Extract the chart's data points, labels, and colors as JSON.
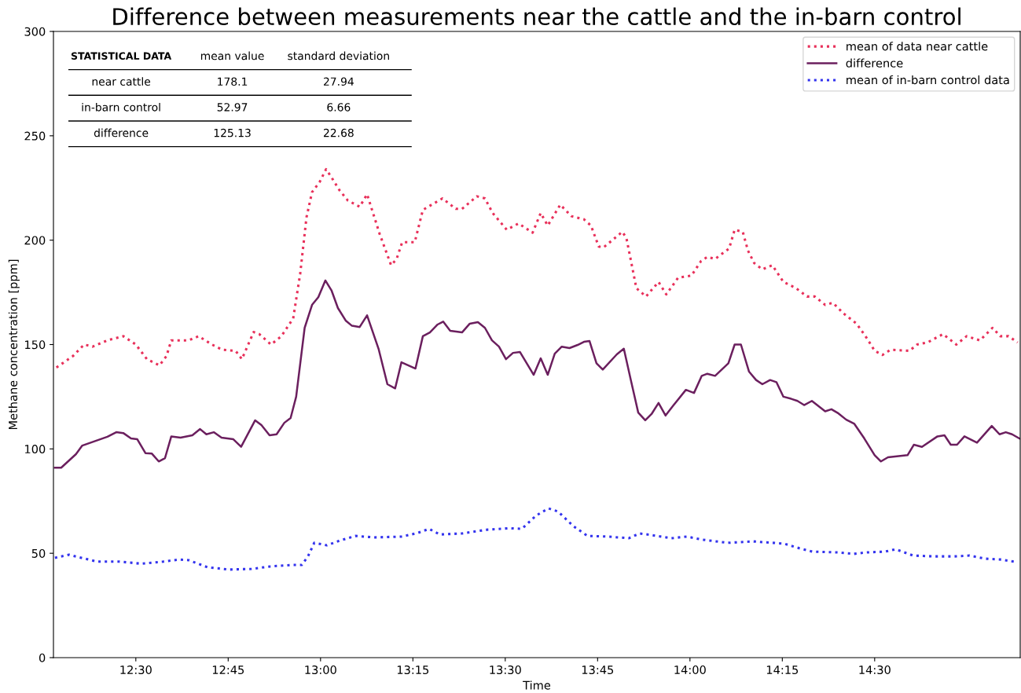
{
  "chart_data": {
    "type": "line",
    "title": "Difference between measurements near the cattle and the in-barn control",
    "xlabel": "Time",
    "ylabel": "Methane concentration [ppm]",
    "xlim": [
      12.277,
      14.894
    ],
    "ylim": [
      0,
      300
    ],
    "xticks": [
      {
        "value": 12.5,
        "label": "12:30"
      },
      {
        "value": 12.75,
        "label": "12:45"
      },
      {
        "value": 13.0,
        "label": "13:00"
      },
      {
        "value": 13.25,
        "label": "13:15"
      },
      {
        "value": 13.5,
        "label": "13:30"
      },
      {
        "value": 13.75,
        "label": "13:45"
      },
      {
        "value": 14.0,
        "label": "14:00"
      },
      {
        "value": 14.25,
        "label": "14:15"
      },
      {
        "value": 14.5,
        "label": "14:30"
      }
    ],
    "yticks": [
      0,
      50,
      100,
      150,
      200,
      250,
      300
    ],
    "grid": false,
    "legend": "top right",
    "marker": "none",
    "series": [
      {
        "name": "mean of data near cattle",
        "color": "#e8305a",
        "line_style": "dotted",
        "x": [
          12.285,
          12.33,
          12.36,
          12.383,
          12.423,
          12.466,
          12.5,
          12.53,
          12.564,
          12.583,
          12.596,
          12.643,
          12.67,
          12.706,
          12.734,
          12.77,
          12.787,
          12.819,
          12.834,
          12.866,
          12.894,
          12.926,
          12.945,
          12.962,
          12.977,
          12.998,
          13.015,
          13.03,
          13.051,
          13.074,
          13.106,
          13.126,
          13.16,
          13.191,
          13.206,
          13.221,
          13.255,
          13.277,
          13.33,
          13.366,
          13.383,
          13.423,
          13.445,
          13.466,
          13.504,
          13.536,
          13.574,
          13.596,
          13.615,
          13.649,
          13.679,
          13.713,
          13.732,
          13.753,
          13.766,
          13.817,
          13.828,
          13.855,
          13.881,
          13.915,
          13.936,
          13.968,
          14.004,
          14.03,
          14.047,
          14.068,
          14.106,
          14.121,
          14.143,
          14.157,
          14.174,
          14.196,
          14.223,
          14.253,
          14.287,
          14.317,
          14.338,
          14.366,
          14.387,
          14.415,
          14.451,
          14.479,
          14.5,
          14.521,
          14.543,
          14.594,
          14.615,
          14.643,
          14.685,
          14.721,
          14.749,
          14.785,
          14.819,
          14.84,
          14.862,
          14.887
        ],
        "values": [
          139,
          144.5,
          150,
          149,
          152,
          154,
          150,
          143,
          140,
          144.5,
          152,
          152,
          154,
          150,
          147.5,
          147,
          143,
          156,
          155,
          150,
          154,
          162.5,
          184,
          211,
          223,
          228,
          234,
          230,
          224,
          219,
          216,
          222,
          203,
          188,
          191,
          199,
          199,
          214.5,
          220,
          215,
          215,
          221,
          220,
          213,
          205,
          208,
          203.6,
          213,
          207,
          217,
          211.5,
          210,
          207,
          197,
          196.5,
          204,
          201,
          177,
          173,
          180,
          174,
          182,
          183,
          190,
          192,
          191,
          196,
          205,
          204,
          195,
          189,
          186,
          188,
          180,
          177,
          173,
          173,
          169,
          170,
          165,
          160,
          153,
          147,
          145,
          147.5,
          147,
          150,
          151,
          155,
          150,
          154,
          152,
          158,
          154,
          154,
          151
        ]
      },
      {
        "name": "difference",
        "color": "#6b1f5e",
        "line_style": "solid",
        "x": [
          12.281,
          12.298,
          12.338,
          12.355,
          12.423,
          12.447,
          12.466,
          12.487,
          12.504,
          12.526,
          12.543,
          12.562,
          12.579,
          12.596,
          12.621,
          12.653,
          12.674,
          12.691,
          12.711,
          12.732,
          12.764,
          12.785,
          12.823,
          12.84,
          12.862,
          12.881,
          12.902,
          12.919,
          12.934,
          12.945,
          12.957,
          12.977,
          12.994,
          13.013,
          13.03,
          13.047,
          13.068,
          13.085,
          13.106,
          13.126,
          13.157,
          13.181,
          13.202,
          13.219,
          13.238,
          13.257,
          13.277,
          13.296,
          13.317,
          13.332,
          13.351,
          13.383,
          13.404,
          13.426,
          13.445,
          13.464,
          13.483,
          13.502,
          13.521,
          13.54,
          13.577,
          13.596,
          13.615,
          13.634,
          13.653,
          13.674,
          13.696,
          13.713,
          13.728,
          13.747,
          13.764,
          13.802,
          13.821,
          13.84,
          13.86,
          13.879,
          13.896,
          13.915,
          13.934,
          13.955,
          13.989,
          14.011,
          14.032,
          14.047,
          14.068,
          14.104,
          14.121,
          14.138,
          14.16,
          14.179,
          14.196,
          14.217,
          14.234,
          14.253,
          14.274,
          14.291,
          14.309,
          14.33,
          14.366,
          14.383,
          14.402,
          14.423,
          14.445,
          14.472,
          14.5,
          14.517,
          14.536,
          14.589,
          14.606,
          14.628,
          14.67,
          14.689,
          14.706,
          14.723,
          14.743,
          14.777,
          14.817,
          14.838,
          14.855,
          14.872,
          14.892
        ],
        "values": [
          91,
          91,
          97.5,
          101.6,
          105.8,
          108,
          107.6,
          105,
          104.6,
          98,
          97.8,
          94,
          95.6,
          106,
          105.4,
          106.5,
          109.5,
          107,
          108,
          105.4,
          104.6,
          101,
          113.7,
          111.4,
          106.5,
          107,
          112.5,
          114.8,
          125,
          140.8,
          158,
          169,
          172.7,
          180.7,
          175.8,
          167.5,
          161.5,
          159,
          158.4,
          164,
          148,
          131,
          129,
          141.5,
          140,
          138.5,
          154,
          155.8,
          159.6,
          161,
          156.6,
          155.8,
          160,
          160.7,
          158,
          152,
          149,
          143,
          146,
          146.4,
          135.5,
          143.4,
          135.5,
          145.6,
          149,
          148.3,
          149.8,
          151.3,
          151.7,
          141,
          138,
          145.3,
          148,
          133,
          117.4,
          113.7,
          116.7,
          122,
          116,
          120.8,
          128.3,
          126.8,
          135,
          136,
          135,
          141,
          150,
          150,
          137,
          133,
          131,
          133,
          132,
          125,
          124,
          123,
          121,
          123,
          118,
          119,
          117,
          114,
          112,
          105,
          97,
          94,
          96,
          97,
          102,
          101,
          106,
          106.5,
          102,
          102,
          106,
          103,
          111,
          107,
          108,
          107,
          105
        ]
      },
      {
        "name": "mean of in-barn control data",
        "color": "#3333ee",
        "line_style": "dotted",
        "x": [
          12.281,
          12.319,
          12.353,
          12.396,
          12.455,
          12.515,
          12.574,
          12.617,
          12.643,
          12.694,
          12.753,
          12.813,
          12.864,
          12.923,
          12.949,
          12.966,
          12.983,
          13.017,
          13.051,
          13.094,
          13.145,
          13.221,
          13.264,
          13.294,
          13.323,
          13.383,
          13.451,
          13.511,
          13.545,
          13.583,
          13.617,
          13.643,
          13.685,
          13.723,
          13.779,
          13.834,
          13.864,
          13.898,
          13.949,
          13.991,
          14.034,
          14.102,
          14.17,
          14.255,
          14.298,
          14.332,
          14.4,
          14.443,
          14.477,
          14.528,
          14.557,
          14.604,
          14.664,
          14.715,
          14.757,
          14.8,
          14.843,
          14.877
        ],
        "values": [
          47.8,
          49.3,
          47.8,
          46,
          46,
          45,
          46,
          47,
          46.7,
          43.3,
          42.2,
          42.5,
          43.7,
          44.4,
          44.4,
          48.5,
          55,
          53.8,
          56,
          58.3,
          57.6,
          58,
          59.8,
          61.7,
          59,
          59.5,
          61.3,
          62,
          61.7,
          68,
          71.5,
          70,
          62.9,
          58.3,
          58,
          57.2,
          59.5,
          58.7,
          57.2,
          58,
          56.5,
          55,
          55.7,
          54.6,
          52.3,
          50.8,
          50.4,
          49.7,
          50.4,
          50.8,
          51.9,
          48.9,
          48.5,
          48.5,
          48.9,
          47.4,
          47,
          46
        ]
      }
    ],
    "annotations": [
      "STATISTICAL DATA",
      "mean value",
      "standard deviation",
      "near cattle",
      "178.1",
      "27.94",
      "in-barn control",
      "52.97",
      "6.66",
      "difference",
      "125.13",
      "22.68"
    ]
  }
}
